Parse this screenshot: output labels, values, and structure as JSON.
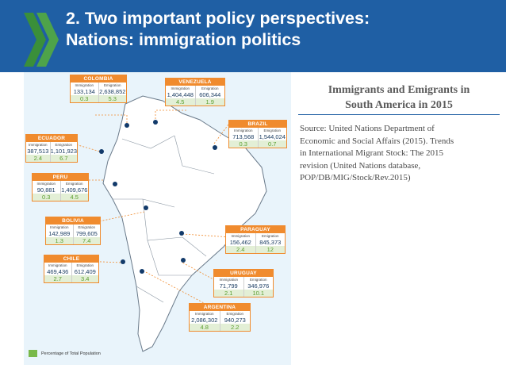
{
  "header": {
    "title_line1": "2. Two important policy perspectives:",
    "title_line2": "Nations: immigration politics",
    "background_color": "#1f5fa4",
    "logo_icon": "oecd-chevrons-logo"
  },
  "panel": {
    "title_line1": "Immigrants and Emigrants in",
    "title_line2": "South America in 2015",
    "source_lines": [
      "Source: United Nations Department of",
      "Economic and Social Affairs (2015). Trends",
      "in International Migrant Stock: The 2015",
      "revision (United Nations database,",
      "POP/DB/MIG/Stock/Rev.2015)"
    ]
  },
  "map": {
    "legend": "Percentage of Total Population",
    "immigration_label": "Immigration",
    "emigration_label": "Emigration",
    "accent_color": "#f08b2e",
    "percent_color": "#5a9e2f",
    "countries": [
      {
        "name": "COLOMBIA",
        "immigration": "133,134",
        "emigration": "2,638,852",
        "immigration_pct": "0.3",
        "emigration_pct": "5.3"
      },
      {
        "name": "VENEZUELA",
        "immigration": "1,404,448",
        "emigration": "606,344",
        "immigration_pct": "4.5",
        "emigration_pct": "1.9"
      },
      {
        "name": "BRAZIL",
        "immigration": "713,568",
        "emigration": "1,544,024",
        "immigration_pct": "0.3",
        "emigration_pct": "0.7"
      },
      {
        "name": "ECUADOR",
        "immigration": "387,513",
        "emigration": "1,101,923",
        "immigration_pct": "2.4",
        "emigration_pct": "6.7"
      },
      {
        "name": "PERU",
        "immigration": "90,881",
        "emigration": "1,409,676",
        "immigration_pct": "0.3",
        "emigration_pct": "4.5"
      },
      {
        "name": "BOLIVIA",
        "immigration": "142,989",
        "emigration": "799,605",
        "immigration_pct": "1.3",
        "emigration_pct": "7.4"
      },
      {
        "name": "PARAGUAY",
        "immigration": "156,462",
        "emigration": "845,373",
        "immigration_pct": "2.4",
        "emigration_pct": "12"
      },
      {
        "name": "CHILE",
        "immigration": "469,436",
        "emigration": "612,409",
        "immigration_pct": "2.7",
        "emigration_pct": "3.4"
      },
      {
        "name": "URUGUAY",
        "immigration": "71,799",
        "emigration": "346,976",
        "immigration_pct": "2.1",
        "emigration_pct": "10.1"
      },
      {
        "name": "ARGENTINA",
        "immigration": "2,086,302",
        "emigration": "940,273",
        "immigration_pct": "4.8",
        "emigration_pct": "2.2"
      }
    ]
  }
}
